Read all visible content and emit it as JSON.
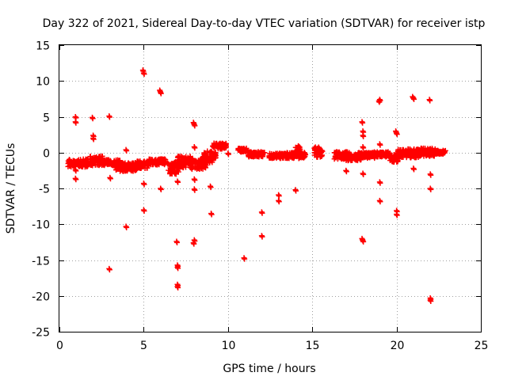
{
  "chart_data": {
    "type": "scatter",
    "title": "Day 322 of 2021, Sidereal Day-to-day VTEC variation (SDTVAR) for receiver istp",
    "xlabel": "GPS time / hours",
    "ylabel": "SDTVAR / TECUs",
    "xlim": [
      0,
      25
    ],
    "ylim": [
      -25,
      15
    ],
    "xticks": [
      0,
      5,
      10,
      15,
      20,
      25
    ],
    "yticks": [
      -25,
      -20,
      -15,
      -10,
      -5,
      0,
      5,
      10,
      15
    ],
    "grid": true,
    "marker": "plus",
    "color": "#ff0000",
    "outliers": [
      [
        0.95,
        5.0
      ],
      [
        0.95,
        4.3
      ],
      [
        0.95,
        -2.4
      ],
      [
        0.95,
        -3.6
      ],
      [
        1.95,
        4.9
      ],
      [
        2.0,
        2.4
      ],
      [
        2.0,
        2.0
      ],
      [
        2.95,
        5.1
      ],
      [
        3.0,
        -3.5
      ],
      [
        2.95,
        -16.2
      ],
      [
        3.95,
        0.4
      ],
      [
        3.95,
        -10.3
      ],
      [
        4.95,
        11.5
      ],
      [
        5.0,
        11.1
      ],
      [
        5.0,
        -4.3
      ],
      [
        5.0,
        -8.0
      ],
      [
        5.95,
        8.7
      ],
      [
        6.0,
        8.4
      ],
      [
        6.0,
        -5.0
      ],
      [
        6.95,
        -12.4
      ],
      [
        7.0,
        -15.7
      ],
      [
        7.0,
        -16.0
      ],
      [
        7.0,
        -18.4
      ],
      [
        7.0,
        -18.7
      ],
      [
        7.0,
        -4.0
      ],
      [
        7.95,
        4.2
      ],
      [
        8.0,
        3.9
      ],
      [
        8.0,
        0.8
      ],
      [
        8.0,
        -5.1
      ],
      [
        8.0,
        -12.2
      ],
      [
        7.95,
        -12.6
      ],
      [
        8.0,
        -3.7
      ],
      [
        8.95,
        -4.7
      ],
      [
        9.0,
        -8.5
      ],
      [
        10.0,
        -0.1
      ],
      [
        10.95,
        -14.7
      ],
      [
        12.0,
        -8.3
      ],
      [
        12.0,
        -11.6
      ],
      [
        13.0,
        -5.9
      ],
      [
        13.0,
        -6.7
      ],
      [
        14.0,
        -5.2
      ],
      [
        17.0,
        -2.5
      ],
      [
        17.95,
        4.3
      ],
      [
        18.0,
        3.0
      ],
      [
        18.0,
        2.4
      ],
      [
        18.0,
        0.8
      ],
      [
        18.0,
        -2.9
      ],
      [
        17.95,
        -12.0
      ],
      [
        18.0,
        -12.3
      ],
      [
        18.95,
        7.2
      ],
      [
        19.0,
        7.4
      ],
      [
        19.0,
        1.2
      ],
      [
        19.0,
        -4.1
      ],
      [
        19.0,
        -6.7
      ],
      [
        19.95,
        3.0
      ],
      [
        20.0,
        2.7
      ],
      [
        20.0,
        -8.1
      ],
      [
        20.0,
        -8.6
      ],
      [
        20.95,
        7.8
      ],
      [
        21.0,
        7.6
      ],
      [
        21.0,
        -2.2
      ],
      [
        21.95,
        7.4
      ],
      [
        22.0,
        -3.0
      ],
      [
        22.0,
        -5.0
      ],
      [
        22.0,
        -20.3
      ],
      [
        22.0,
        -20.6
      ]
    ],
    "clusters": [
      {
        "x": [
          0.5,
          1.7
        ],
        "y": [
          -2.0,
          -0.9
        ]
      },
      {
        "x": [
          1.8,
          2.6
        ],
        "y": [
          -1.8,
          -0.5
        ]
      },
      {
        "x": [
          2.6,
          3.6
        ],
        "y": [
          -1.8,
          -1.0
        ]
      },
      {
        "x": [
          3.3,
          4.6
        ],
        "y": [
          -2.6,
          -1.4
        ]
      },
      {
        "x": [
          4.5,
          5.3
        ],
        "y": [
          -2.2,
          -1.2
        ]
      },
      {
        "x": [
          5.3,
          6.3
        ],
        "y": [
          -1.7,
          -0.9
        ]
      },
      {
        "x": [
          6.4,
          7.1
        ],
        "y": [
          -3.0,
          -1.3
        ]
      },
      {
        "x": [
          7.0,
          7.9
        ],
        "y": [
          -2.1,
          -0.5
        ]
      },
      {
        "x": [
          7.8,
          8.7
        ],
        "y": [
          -2.3,
          -1.0
        ]
      },
      {
        "x": [
          8.5,
          9.3
        ],
        "y": [
          -1.5,
          0.2
        ]
      },
      {
        "x": [
          9.1,
          9.9
        ],
        "y": [
          0.5,
          1.3
        ]
      },
      {
        "x": [
          10.6,
          11.1
        ],
        "y": [
          0.1,
          0.6
        ]
      },
      {
        "x": [
          11.2,
          12.2
        ],
        "y": [
          -0.6,
          0.1
        ]
      },
      {
        "x": [
          12.4,
          13.6
        ],
        "y": [
          -0.8,
          -0.1
        ]
      },
      {
        "x": [
          13.5,
          14.6
        ],
        "y": [
          -0.8,
          0.0
        ]
      },
      {
        "x": [
          14.0,
          14.3
        ],
        "y": [
          -0.3,
          1.1
        ]
      },
      {
        "x": [
          15.1,
          15.6
        ],
        "y": [
          -0.7,
          0.8
        ]
      },
      {
        "x": [
          16.3,
          17.2
        ],
        "y": [
          -0.9,
          0.1
        ]
      },
      {
        "x": [
          17.0,
          17.9
        ],
        "y": [
          -1.1,
          -0.2
        ]
      },
      {
        "x": [
          17.7,
          18.8
        ],
        "y": [
          -0.8,
          0.0
        ]
      },
      {
        "x": [
          18.6,
          19.6
        ],
        "y": [
          -0.6,
          0.1
        ]
      },
      {
        "x": [
          19.6,
          20.1
        ],
        "y": [
          -1.3,
          -0.3
        ]
      },
      {
        "x": [
          20.0,
          21.3
        ],
        "y": [
          -0.7,
          0.5
        ]
      },
      {
        "x": [
          21.2,
          22.3
        ],
        "y": [
          -0.5,
          0.6
        ]
      },
      {
        "x": [
          22.3,
          22.9
        ],
        "y": [
          -0.2,
          0.3
        ]
      }
    ]
  }
}
